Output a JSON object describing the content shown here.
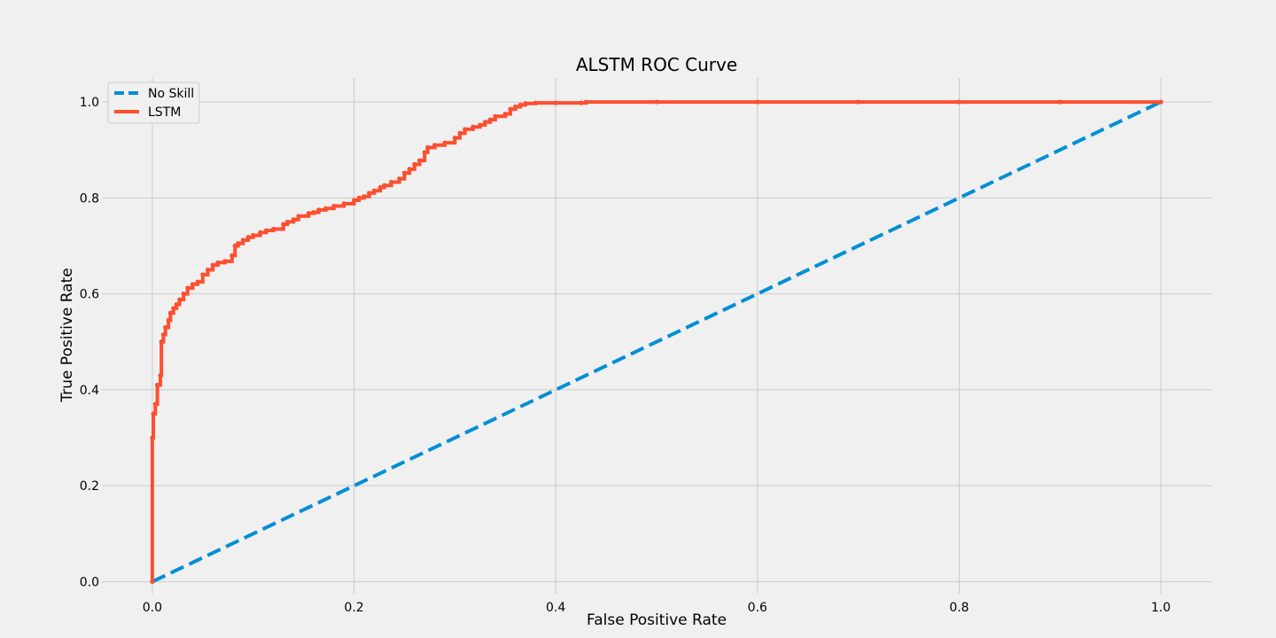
{
  "chart_data": {
    "type": "line",
    "title": "ALSTM ROC Curve",
    "xlabel": "False Positive Rate",
    "ylabel": "True Positive Rate",
    "xlim": [
      -0.05,
      1.05
    ],
    "ylim": [
      -0.025,
      1.05
    ],
    "xticks": [
      "0.0",
      "0.2",
      "0.4",
      "0.6",
      "0.8",
      "1.0"
    ],
    "yticks": [
      "0.0",
      "0.2",
      "0.4",
      "0.6",
      "0.8",
      "1.0"
    ],
    "grid": true,
    "legend_position": "top-left",
    "colors": {
      "background": "#f0f0f0",
      "grid": "#cbcbcb",
      "no_skill": "#008fd5",
      "lstm": "#fc4f30"
    },
    "series": [
      {
        "name": "No Skill",
        "style": "dashed",
        "x": [
          0,
          1
        ],
        "y": [
          0,
          1
        ]
      },
      {
        "name": "LSTM",
        "style": "solid-markers",
        "x": [
          0,
          0,
          0.001,
          0.003,
          0.005,
          0.008,
          0.009,
          0.011,
          0.013,
          0.016,
          0.018,
          0.021,
          0.024,
          0.027,
          0.031,
          0.035,
          0.04,
          0.045,
          0.05,
          0.055,
          0.06,
          0.065,
          0.072,
          0.079,
          0.082,
          0.085,
          0.09,
          0.095,
          0.1,
          0.107,
          0.113,
          0.12,
          0.13,
          0.134,
          0.14,
          0.145,
          0.155,
          0.16,
          0.165,
          0.172,
          0.18,
          0.19,
          0.2,
          0.205,
          0.21,
          0.215,
          0.22,
          0.226,
          0.23,
          0.237,
          0.245,
          0.25,
          0.255,
          0.26,
          0.265,
          0.27,
          0.273,
          0.28,
          0.29,
          0.3,
          0.305,
          0.31,
          0.318,
          0.325,
          0.33,
          0.335,
          0.34,
          0.35,
          0.355,
          0.36,
          0.365,
          0.37,
          0.38,
          0.4,
          0.425,
          0.43,
          0.5,
          0.6,
          0.7,
          0.8,
          0.9,
          1.0
        ],
        "y": [
          0,
          0.3,
          0.35,
          0.37,
          0.41,
          0.43,
          0.5,
          0.515,
          0.53,
          0.545,
          0.56,
          0.57,
          0.578,
          0.588,
          0.6,
          0.612,
          0.62,
          0.625,
          0.64,
          0.65,
          0.66,
          0.665,
          0.668,
          0.68,
          0.7,
          0.705,
          0.712,
          0.718,
          0.722,
          0.728,
          0.732,
          0.735,
          0.745,
          0.75,
          0.755,
          0.762,
          0.768,
          0.77,
          0.775,
          0.778,
          0.783,
          0.788,
          0.795,
          0.8,
          0.803,
          0.81,
          0.815,
          0.822,
          0.826,
          0.833,
          0.84,
          0.852,
          0.86,
          0.87,
          0.878,
          0.895,
          0.905,
          0.91,
          0.915,
          0.925,
          0.935,
          0.943,
          0.948,
          0.952,
          0.958,
          0.963,
          0.97,
          0.975,
          0.985,
          0.99,
          0.994,
          0.997,
          0.998,
          0.998,
          0.998,
          1.0,
          1.0,
          1.0,
          1.0,
          1.0,
          1.0,
          1.0
        ]
      }
    ]
  }
}
